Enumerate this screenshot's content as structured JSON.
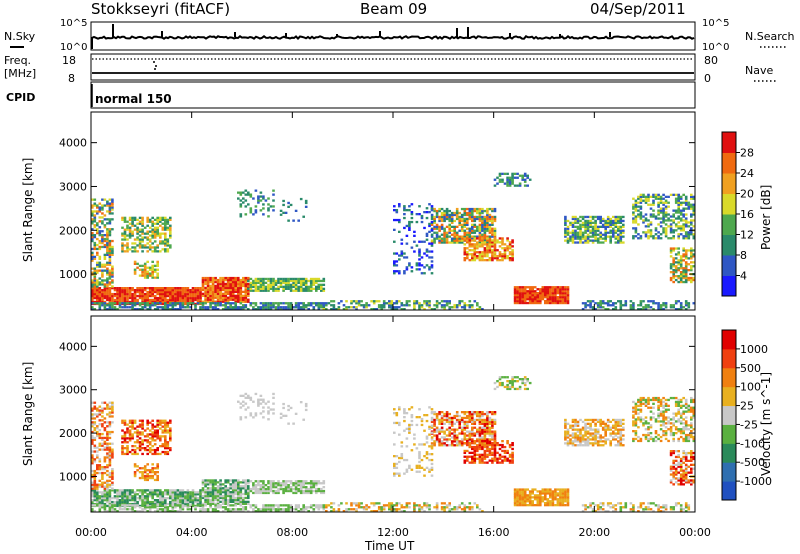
{
  "header": {
    "station": "Stokkseyri (fitACF)",
    "beam": "Beam 09",
    "date": "04/Sep/2011"
  },
  "sky_panel": {
    "left_label": "N.Sky",
    "right_label": "N.Search",
    "tick_hi": "10^5",
    "tick_lo": "10^0"
  },
  "freq_panel": {
    "left_label_1": "Freq.",
    "left_label_2": "[MHz]",
    "right_label": "Nave",
    "left_ticks": [
      "18",
      "8"
    ],
    "right_ticks": [
      "80",
      "0"
    ]
  },
  "cpid_panel": {
    "label": "CPID",
    "mode": "normal 150"
  },
  "chart_data": [
    {
      "type": "heatmap",
      "ylabel": "Slant Range [km]",
      "x": [
        "00:00",
        "04:00",
        "08:00",
        "12:00",
        "16:00",
        "20:00",
        "00:00"
      ],
      "yticks": [
        1000,
        2000,
        3000,
        4000
      ],
      "ylim": [
        180,
        4700
      ],
      "colorbar": {
        "label": "Power [dB]",
        "ticks": [
          "4",
          "8",
          "12",
          "16",
          "20",
          "24",
          "28"
        ],
        "colors": [
          "#1a1aff",
          "#2f57c4",
          "#2a8a6a",
          "#4ea84e",
          "#d9d92a",
          "#f0a020",
          "#f06a10",
          "#e01010"
        ]
      }
    },
    {
      "type": "heatmap",
      "ylabel": "Slant Range [km]",
      "xlabel": "Time UT",
      "x": [
        "00:00",
        "04:00",
        "08:00",
        "12:00",
        "16:00",
        "20:00",
        "00:00"
      ],
      "yticks": [
        1000,
        2000,
        3000,
        4000
      ],
      "ylim": [
        180,
        4700
      ],
      "colorbar": {
        "label": "Velocity [m s^-1]",
        "ticks": [
          "1000",
          "500",
          "100",
          "25",
          "-25",
          "-100",
          "-500",
          "-1000"
        ],
        "colors": [
          "#2050c0",
          "#2f6fb0",
          "#2a8a5a",
          "#5ab040",
          "#c8c8c8",
          "#e8b020",
          "#f08010",
          "#f04010",
          "#e00000"
        ]
      }
    }
  ]
}
